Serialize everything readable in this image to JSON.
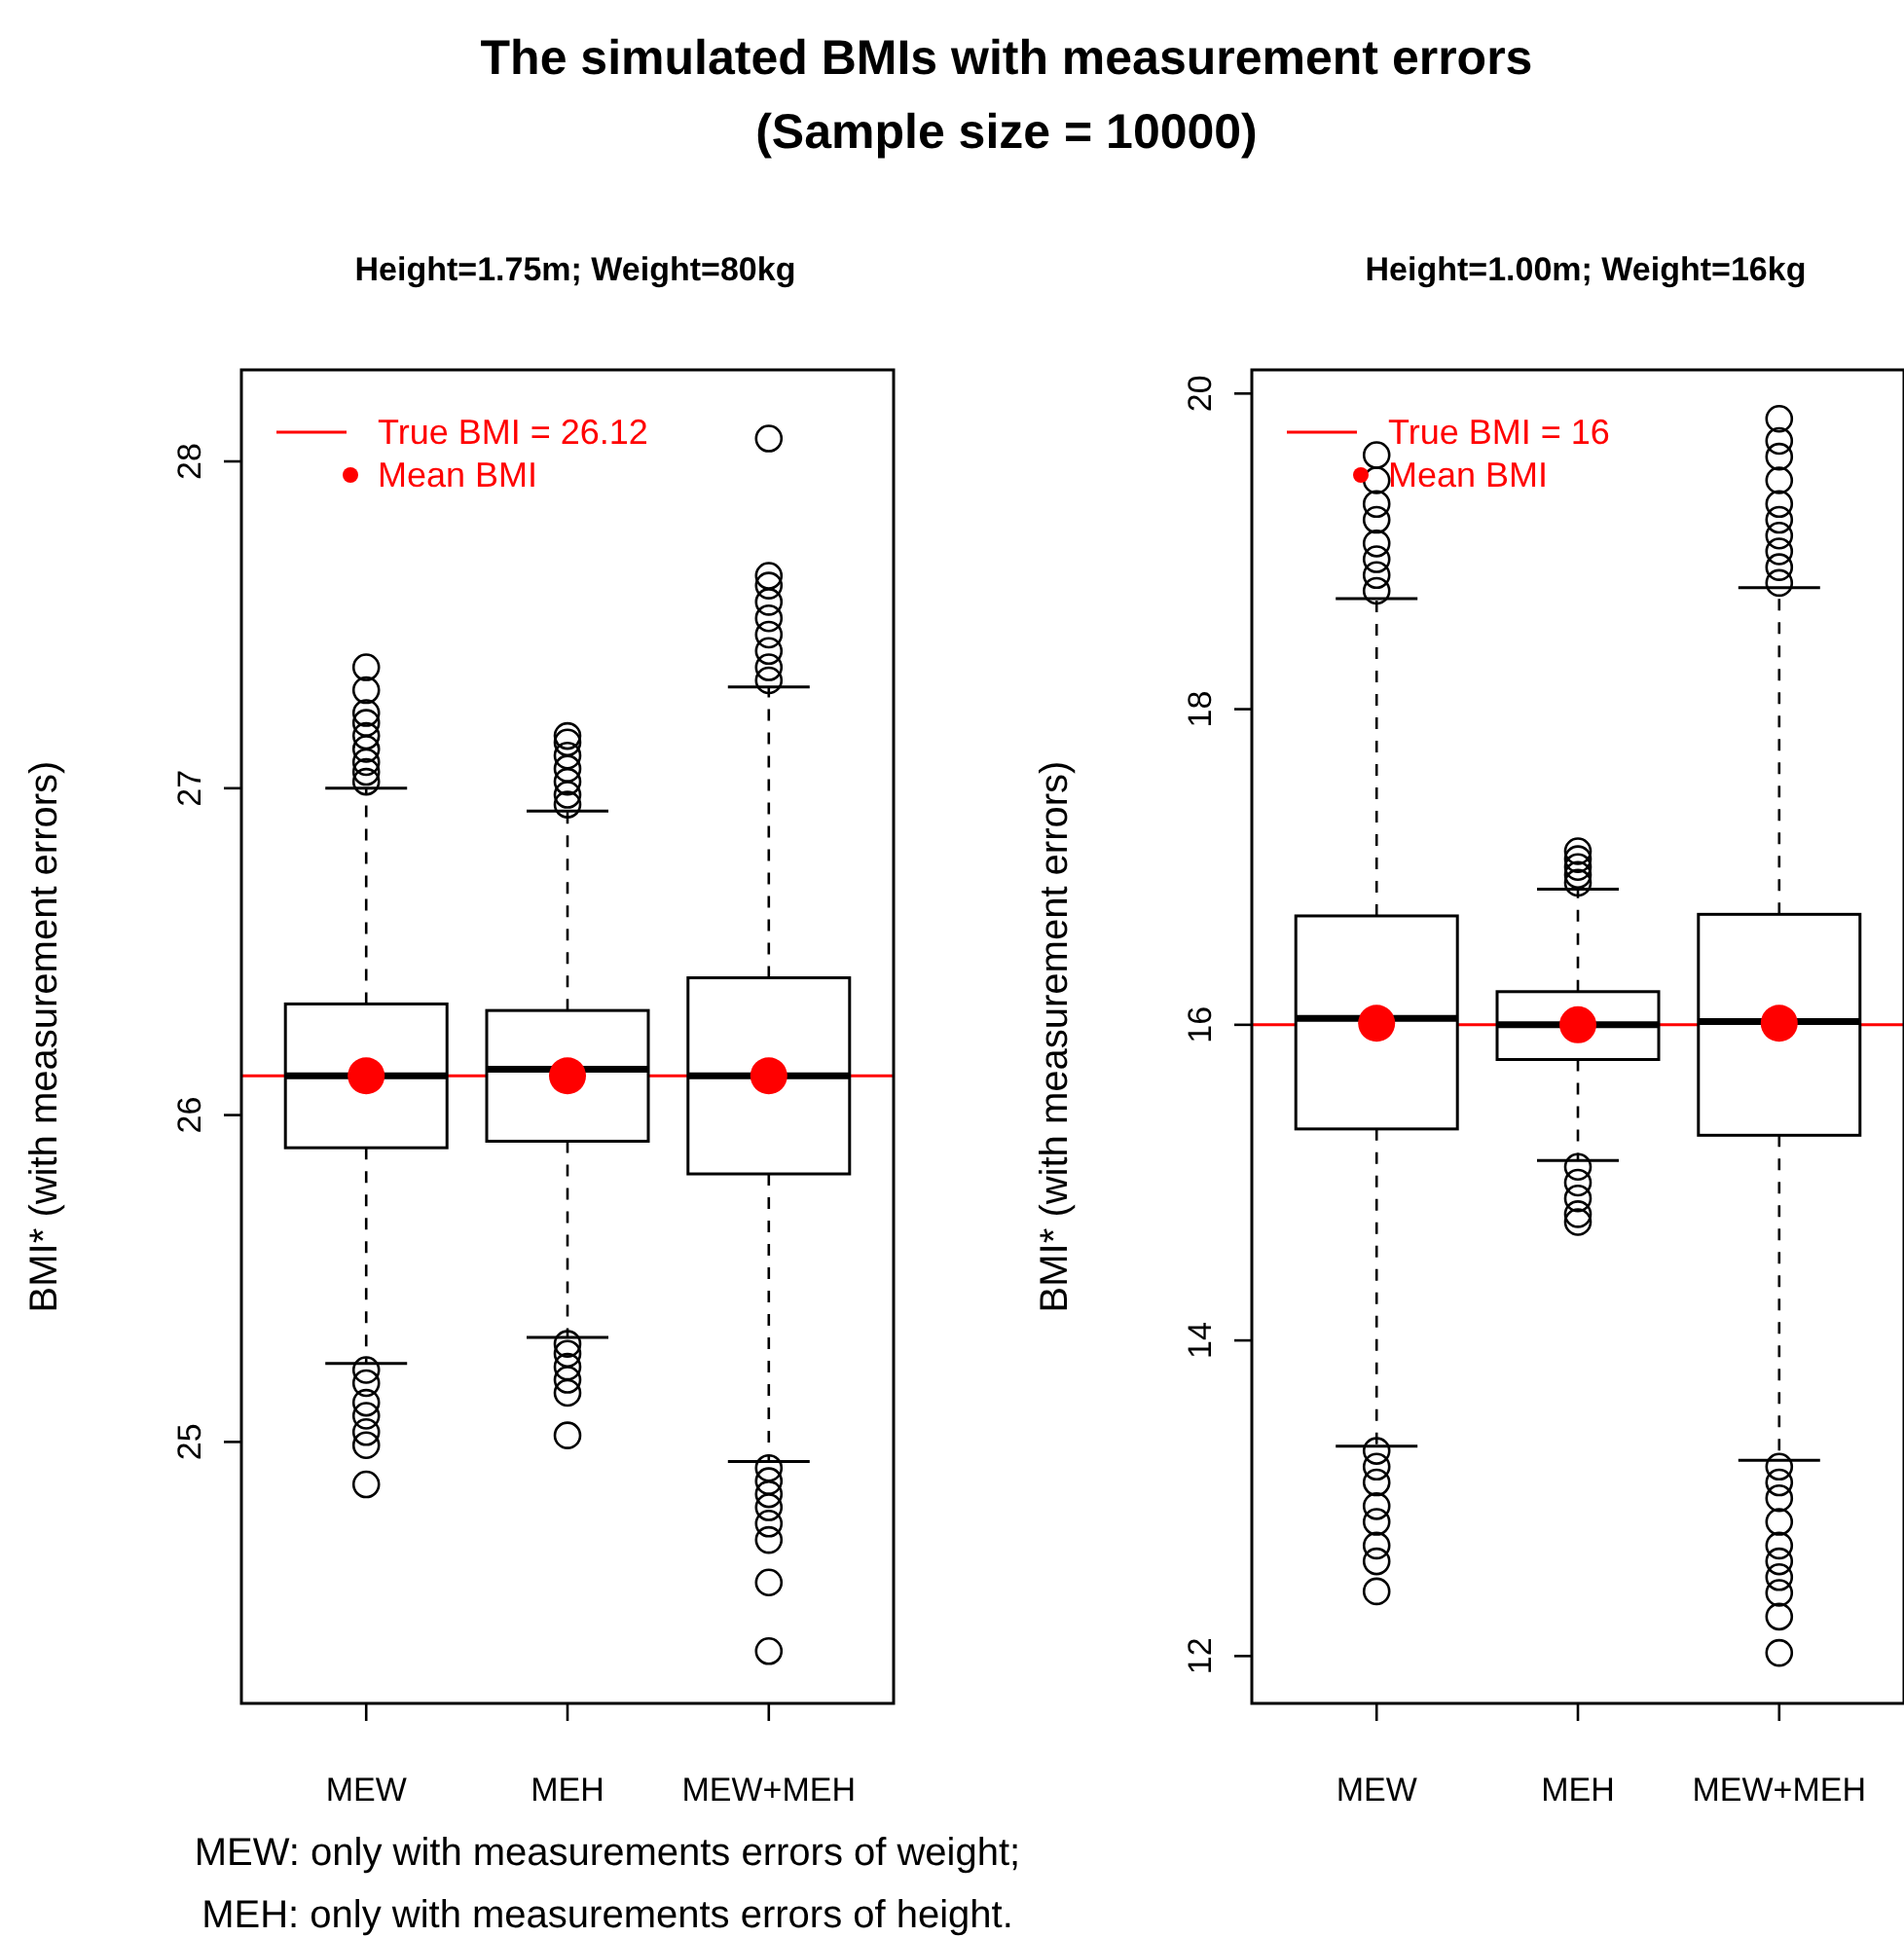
{
  "chart_data": [
    {
      "type": "box",
      "title": "The simulated BMIs with measurement errors\n(Sample size = 10000)",
      "subtitle": "Height=1.75m; Weight=80kg",
      "ylabel": "BMI* (with measurement errors)",
      "categories": [
        "MEW",
        "MEH",
        "MEW+MEH"
      ],
      "ylim": [
        24.2,
        28.28
      ],
      "yticks": [
        25,
        26,
        27,
        28
      ],
      "boxes": [
        {
          "low": 25.24,
          "q1": 25.9,
          "median": 26.12,
          "q3": 26.34,
          "high": 27.0,
          "outliers": [
            27.02,
            27.05,
            27.08,
            27.12,
            27.16,
            27.2,
            27.23,
            27.3,
            27.37,
            25.22,
            25.18,
            25.12,
            25.08,
            25.03,
            24.99,
            24.87
          ]
        },
        {
          "low": 25.32,
          "q1": 25.92,
          "median": 26.14,
          "q3": 26.32,
          "high": 26.93,
          "outliers": [
            26.95,
            26.98,
            27.02,
            27.06,
            27.1,
            27.14,
            27.16,
            25.3,
            25.27,
            25.23,
            25.19,
            25.15,
            25.02
          ]
        },
        {
          "low": 24.94,
          "q1": 25.82,
          "median": 26.12,
          "q3": 26.42,
          "high": 27.31,
          "outliers": [
            27.33,
            27.37,
            27.42,
            27.47,
            27.52,
            27.57,
            27.62,
            27.65,
            28.07,
            24.92,
            24.88,
            24.84,
            24.8,
            24.75,
            24.7,
            24.57,
            24.36
          ]
        }
      ],
      "series": [
        {
          "type": "scatter",
          "name": "Mean BMI",
          "color": "#ff0000",
          "x": [
            "MEW",
            "MEH",
            "MEW+MEH"
          ],
          "values": [
            26.12,
            26.12,
            26.12
          ]
        }
      ],
      "ref_lines": [
        {
          "axis": "y",
          "value": 26.12,
          "label": "True BMI = 26.12",
          "color": "#ff0000"
        }
      ],
      "legend": "top left",
      "marker": "circle",
      "annotations": [
        "MEW: only with measurements errors of weight;",
        "MEH: only with measurements errors of height."
      ]
    },
    {
      "type": "box",
      "subtitle": "Height=1.00m; Weight=16kg",
      "ylabel": "BMI* (with measurement errors)",
      "categories": [
        "MEW",
        "MEH",
        "MEW+MEH"
      ],
      "ylim": [
        11.7,
        20.15
      ],
      "yticks": [
        12,
        14,
        16,
        18,
        20
      ],
      "boxes": [
        {
          "low": 13.33,
          "q1": 15.34,
          "median": 16.04,
          "q3": 16.69,
          "high": 18.7,
          "outliers": [
            18.75,
            18.85,
            18.95,
            19.05,
            19.2,
            19.3,
            19.45,
            19.61,
            13.3,
            13.2,
            13.1,
            12.95,
            12.85,
            12.7,
            12.6,
            12.41
          ]
        },
        {
          "low": 15.14,
          "q1": 15.78,
          "median": 16.0,
          "q3": 16.21,
          "high": 16.86,
          "outliers": [
            16.9,
            16.95,
            17.0,
            17.05,
            17.1,
            15.1,
            15.0,
            14.9,
            14.8,
            14.75
          ]
        },
        {
          "low": 13.24,
          "q1": 15.3,
          "median": 16.02,
          "q3": 16.7,
          "high": 18.77,
          "outliers": [
            18.8,
            18.9,
            19.0,
            19.1,
            19.2,
            19.3,
            19.45,
            19.6,
            19.7,
            19.84,
            13.2,
            13.1,
            13.0,
            12.85,
            12.7,
            12.6,
            12.5,
            12.4,
            12.25,
            12.02
          ]
        }
      ],
      "series": [
        {
          "type": "scatter",
          "name": "Mean BMI",
          "color": "#ff0000",
          "x": [
            "MEW",
            "MEH",
            "MEW+MEH"
          ],
          "values": [
            16.01,
            16.0,
            16.01
          ]
        }
      ],
      "ref_lines": [
        {
          "axis": "y",
          "value": 16,
          "label": "True BMI = 16",
          "color": "#ff0000"
        }
      ],
      "legend": "top left",
      "marker": "circle"
    }
  ]
}
